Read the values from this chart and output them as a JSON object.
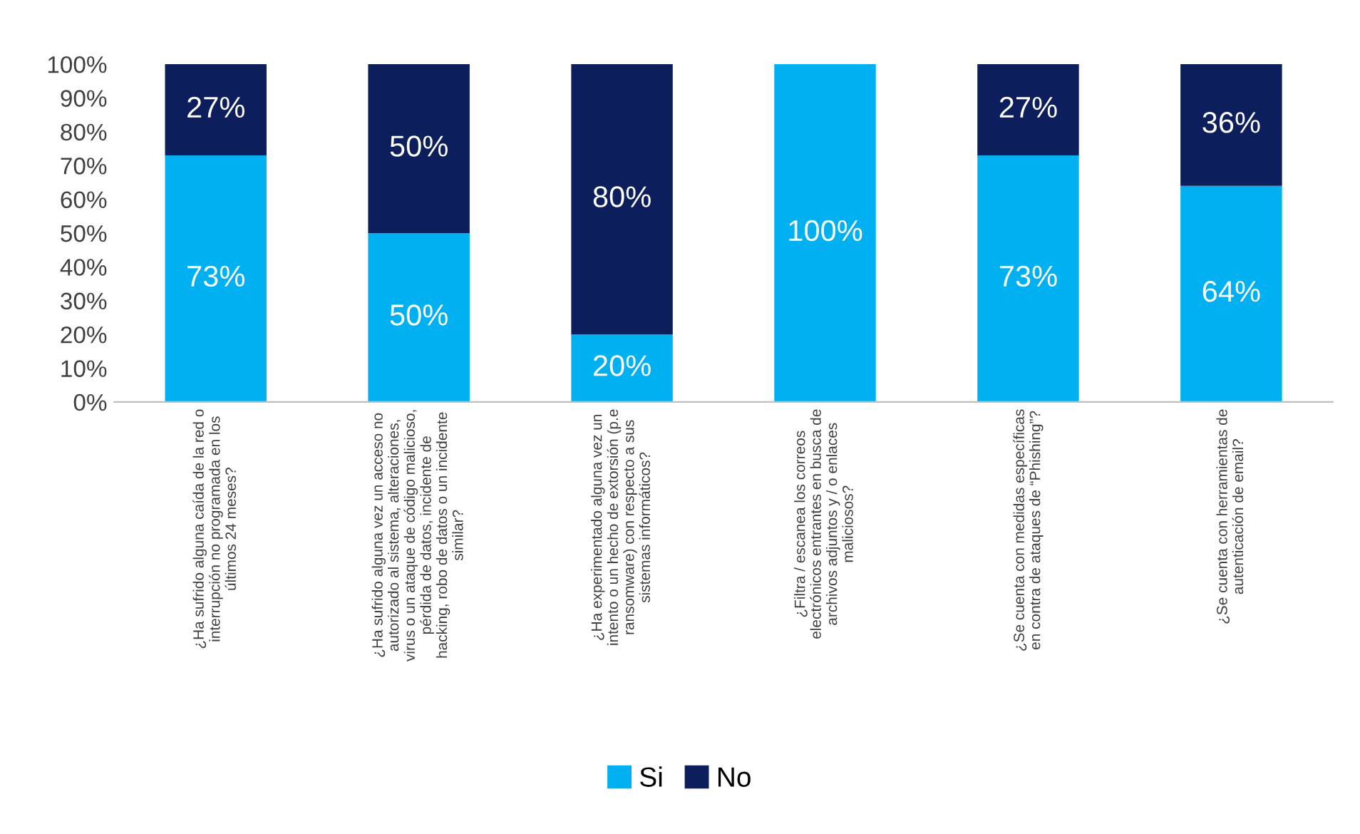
{
  "chart_data": {
    "type": "bar",
    "stacked": true,
    "categories": [
      "¿Ha sufrido alguna caída de la red o\ninterrupción no programada en los\núltimos 24 meses?",
      "¿Ha sufrido alguna vez un acceso no\nautorizado al sistema, alteraciones,\nvirus o un ataque de código malicioso,\npérdida de datos, incidente de\nhacking, robo de datos o un incidente\nsimilar?",
      "¿Ha experimentado alguna vez un\nintento o un hecho de extorsión (p.e\nransomware) con respecto a sus\nsistemas informáticos?",
      "¿Filtra / escanea los correos\nelectrónicos entrantes en busca de\narchivos adjuntos y / o enlaces\nmaliciosos?",
      "¿Se cuenta con medidas específicas\nen contra de ataques de “Phishing”?",
      "¿Se cuenta con herramientas de\nautenticación de email?"
    ],
    "series": [
      {
        "name": "Si",
        "color": "#00b0f0",
        "values": [
          73,
          50,
          20,
          100,
          73,
          64
        ],
        "value_labels": [
          "73%",
          "50%",
          "20%",
          "100%",
          "73%",
          "64%"
        ]
      },
      {
        "name": "No",
        "color": "#0c1f5c",
        "values": [
          27,
          50,
          80,
          0,
          27,
          36
        ],
        "value_labels": [
          "27%",
          "50%",
          "80%",
          null,
          "27%",
          "36%"
        ]
      }
    ],
    "ylim": [
      0,
      100
    ],
    "yticks": [
      {
        "value": 0,
        "label": "0%"
      },
      {
        "value": 10,
        "label": "10%"
      },
      {
        "value": 20,
        "label": "20%"
      },
      {
        "value": 30,
        "label": "30%"
      },
      {
        "value": 40,
        "label": "40%"
      },
      {
        "value": 50,
        "label": "50%"
      },
      {
        "value": 60,
        "label": "60%"
      },
      {
        "value": 70,
        "label": "70%"
      },
      {
        "value": 80,
        "label": "80%"
      },
      {
        "value": 90,
        "label": "90%"
      },
      {
        "value": 100,
        "label": "100%"
      }
    ],
    "grid": false,
    "legend": "bottom"
  }
}
